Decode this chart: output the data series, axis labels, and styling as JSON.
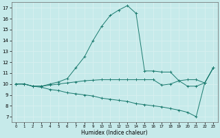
{
  "title": "",
  "xlabel": "Humidex (Indice chaleur)",
  "bg_color": "#c6eaea",
  "grid_color": "#d8f0f0",
  "line_color": "#1a7a6e",
  "xlim": [
    -0.5,
    23.5
  ],
  "ylim": [
    6.5,
    17.5
  ],
  "xticks": [
    0,
    1,
    2,
    3,
    4,
    5,
    6,
    7,
    8,
    9,
    10,
    11,
    12,
    13,
    14,
    15,
    16,
    17,
    18,
    19,
    20,
    21,
    22,
    23
  ],
  "yticks": [
    7,
    8,
    9,
    10,
    11,
    12,
    13,
    14,
    15,
    16,
    17
  ],
  "line1_x": [
    0,
    1,
    2,
    3,
    4,
    5,
    6,
    7,
    8,
    9,
    10,
    11,
    12,
    13,
    14,
    15,
    16,
    17,
    18,
    19,
    20,
    21,
    22,
    23
  ],
  "line1_y": [
    10.0,
    10.0,
    9.8,
    9.8,
    10.0,
    10.2,
    10.5,
    11.5,
    12.5,
    14.0,
    15.3,
    16.3,
    16.8,
    17.2,
    16.5,
    11.2,
    11.2,
    11.1,
    11.1,
    10.3,
    9.8,
    9.8,
    10.1,
    11.5
  ],
  "line2_x": [
    0,
    1,
    2,
    3,
    4,
    5,
    6,
    7,
    8,
    9,
    10,
    11,
    12,
    13,
    14,
    15,
    16,
    17,
    18,
    19,
    20,
    21,
    22,
    23
  ],
  "line2_y": [
    10.0,
    10.0,
    9.8,
    9.8,
    9.9,
    10.0,
    10.1,
    10.2,
    10.3,
    10.35,
    10.4,
    10.4,
    10.4,
    10.4,
    10.4,
    10.4,
    10.4,
    9.9,
    10.0,
    10.3,
    10.4,
    10.4,
    10.1,
    11.5
  ],
  "line3_x": [
    0,
    1,
    2,
    3,
    4,
    5,
    6,
    7,
    8,
    9,
    10,
    11,
    12,
    13,
    14,
    15,
    16,
    17,
    18,
    19,
    20,
    21,
    22,
    23
  ],
  "line3_y": [
    10.0,
    10.0,
    9.8,
    9.7,
    9.5,
    9.4,
    9.2,
    9.1,
    9.0,
    8.9,
    8.7,
    8.6,
    8.5,
    8.4,
    8.2,
    8.1,
    8.0,
    7.9,
    7.75,
    7.6,
    7.4,
    7.0,
    10.1,
    11.5
  ]
}
